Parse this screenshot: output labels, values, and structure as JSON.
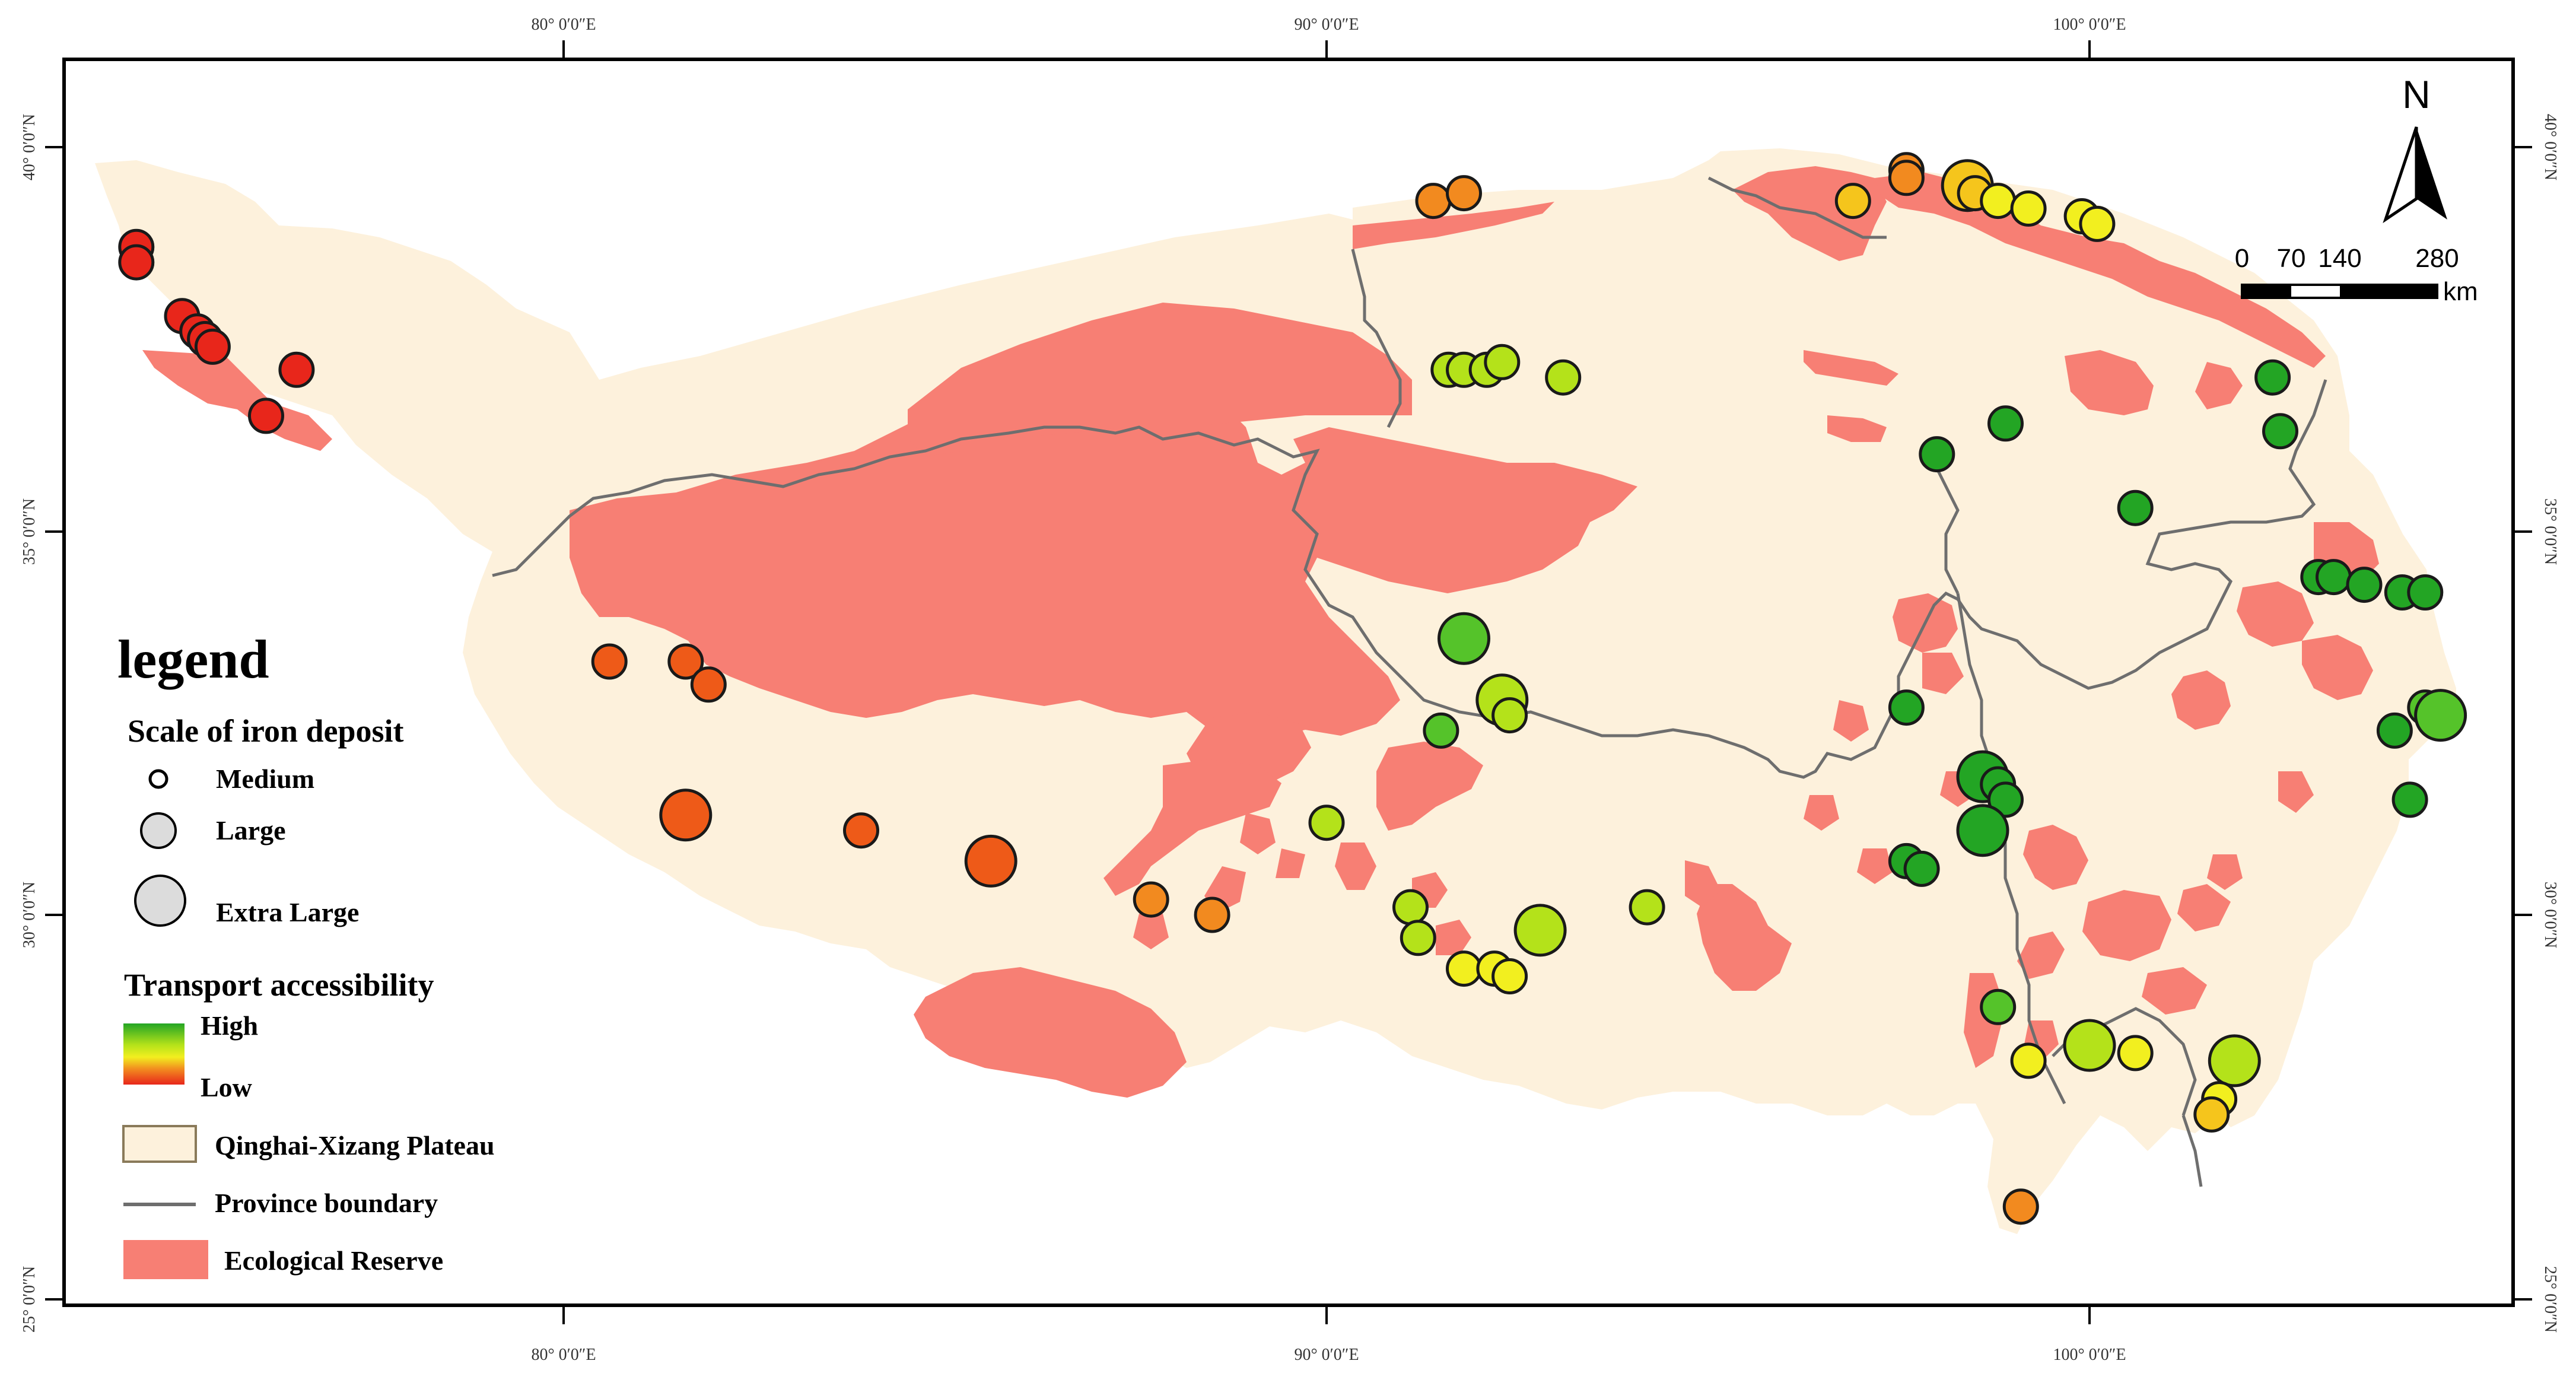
{
  "graticule": {
    "lon_labels": [
      "80° 0′0″E",
      "90° 0′0″E",
      "100° 0′0″E"
    ],
    "lat_labels": [
      "40° 0′0″N",
      "35° 0′0″N",
      "30° 0′0″N",
      "25° 0′0″N"
    ]
  },
  "north_arrow": {
    "label": "N",
    "icon": "north-arrow-icon"
  },
  "scale_bar": {
    "ticks": [
      "0",
      "70",
      "140",
      "280"
    ],
    "unit": "km"
  },
  "legend": {
    "title": "legend",
    "scale_heading": "Scale of iron deposit",
    "scale_items": [
      "Medium",
      "Large",
      "Extra Large"
    ],
    "access_heading": "Transport accessibility",
    "access_high": "High",
    "access_low": "Low",
    "plateau_label": "Qinghai-Xizang Plateau",
    "boundary_label": "Province boundary",
    "reserve_label": "Ecological Reserve"
  },
  "colors": {
    "plateau": "#fdf1dc",
    "reserve": "#f77f74",
    "boundary": "#6e6e6e",
    "accessibility_ramp": [
      "#e8261b",
      "#ee5a18",
      "#f28a1f",
      "#f5c51c",
      "#f2ef1f",
      "#b4e21a",
      "#55c32a",
      "#23a524"
    ]
  },
  "deposits": [
    {
      "lon": 74.4,
      "lat": 38.7,
      "size": "large",
      "access": 0.02
    },
    {
      "lon": 74.4,
      "lat": 38.5,
      "size": "large",
      "access": 0.02
    },
    {
      "lon": 75.0,
      "lat": 37.8,
      "size": "large",
      "access": 0.02
    },
    {
      "lon": 75.2,
      "lat": 37.6,
      "size": "large",
      "access": 0.02
    },
    {
      "lon": 75.3,
      "lat": 37.5,
      "size": "large",
      "access": 0.02
    },
    {
      "lon": 75.4,
      "lat": 37.4,
      "size": "large",
      "access": 0.02
    },
    {
      "lon": 76.5,
      "lat": 37.1,
      "size": "large",
      "access": 0.05
    },
    {
      "lon": 76.1,
      "lat": 36.5,
      "size": "large",
      "access": 0.05
    },
    {
      "lon": 80.6,
      "lat": 33.3,
      "size": "large",
      "access": 0.12
    },
    {
      "lon": 81.6,
      "lat": 33.3,
      "size": "large",
      "access": 0.12
    },
    {
      "lon": 81.9,
      "lat": 33.0,
      "size": "large",
      "access": 0.12
    },
    {
      "lon": 81.6,
      "lat": 31.3,
      "size": "xlarge",
      "access": 0.1
    },
    {
      "lon": 83.9,
      "lat": 31.1,
      "size": "large",
      "access": 0.17
    },
    {
      "lon": 85.6,
      "lat": 30.7,
      "size": "xlarge",
      "access": 0.2
    },
    {
      "lon": 87.7,
      "lat": 30.2,
      "size": "large",
      "access": 0.3
    },
    {
      "lon": 88.5,
      "lat": 30.0,
      "size": "large",
      "access": 0.3
    },
    {
      "lon": 91.4,
      "lat": 39.3,
      "size": "large",
      "access": 0.28
    },
    {
      "lon": 91.8,
      "lat": 39.4,
      "size": "large",
      "access": 0.28
    },
    {
      "lon": 96.9,
      "lat": 39.3,
      "size": "large",
      "access": 0.38
    },
    {
      "lon": 97.6,
      "lat": 39.7,
      "size": "large",
      "access": 0.33
    },
    {
      "lon": 97.6,
      "lat": 39.6,
      "size": "large",
      "access": 0.33
    },
    {
      "lon": 98.4,
      "lat": 39.5,
      "size": "xlarge",
      "access": 0.45
    },
    {
      "lon": 98.5,
      "lat": 39.4,
      "size": "large",
      "access": 0.45
    },
    {
      "lon": 98.8,
      "lat": 39.3,
      "size": "large",
      "access": 0.5
    },
    {
      "lon": 99.2,
      "lat": 39.2,
      "size": "large",
      "access": 0.5
    },
    {
      "lon": 99.9,
      "lat": 39.1,
      "size": "large",
      "access": 0.58
    },
    {
      "lon": 100.1,
      "lat": 39.0,
      "size": "large",
      "access": 0.6
    },
    {
      "lon": 91.6,
      "lat": 37.1,
      "size": "large",
      "access": 0.72
    },
    {
      "lon": 91.8,
      "lat": 37.1,
      "size": "large",
      "access": 0.72
    },
    {
      "lon": 92.1,
      "lat": 37.1,
      "size": "large",
      "access": 0.72
    },
    {
      "lon": 92.3,
      "lat": 37.2,
      "size": "large",
      "access": 0.72
    },
    {
      "lon": 93.1,
      "lat": 37.0,
      "size": "large",
      "access": 0.78
    },
    {
      "lon": 91.8,
      "lat": 33.6,
      "size": "xlarge",
      "access": 0.8
    },
    {
      "lon": 92.3,
      "lat": 32.8,
      "size": "xlarge",
      "access": 0.75
    },
    {
      "lon": 92.4,
      "lat": 32.6,
      "size": "large",
      "access": 0.75
    },
    {
      "lon": 91.5,
      "lat": 32.4,
      "size": "large",
      "access": 0.85
    },
    {
      "lon": 90.0,
      "lat": 31.2,
      "size": "large",
      "access": 0.68
    },
    {
      "lon": 91.1,
      "lat": 30.1,
      "size": "large",
      "access": 0.65
    },
    {
      "lon": 91.2,
      "lat": 29.7,
      "size": "large",
      "access": 0.65
    },
    {
      "lon": 92.8,
      "lat": 29.8,
      "size": "xlarge",
      "access": 0.72
    },
    {
      "lon": 94.2,
      "lat": 30.1,
      "size": "large",
      "access": 0.75
    },
    {
      "lon": 91.8,
      "lat": 29.3,
      "size": "large",
      "access": 0.6
    },
    {
      "lon": 92.2,
      "lat": 29.3,
      "size": "large",
      "access": 0.6
    },
    {
      "lon": 92.4,
      "lat": 29.2,
      "size": "large",
      "access": 0.6
    },
    {
      "lon": 98.0,
      "lat": 36.0,
      "size": "large",
      "access": 0.95
    },
    {
      "lon": 98.9,
      "lat": 36.4,
      "size": "large",
      "access": 0.95
    },
    {
      "lon": 100.6,
      "lat": 35.3,
      "size": "large",
      "access": 0.95
    },
    {
      "lon": 102.4,
      "lat": 37.0,
      "size": "large",
      "access": 0.95
    },
    {
      "lon": 102.5,
      "lat": 36.3,
      "size": "large",
      "access": 0.95
    },
    {
      "lon": 103.0,
      "lat": 34.4,
      "size": "large",
      "access": 0.98
    },
    {
      "lon": 103.2,
      "lat": 34.4,
      "size": "large",
      "access": 0.98
    },
    {
      "lon": 103.6,
      "lat": 34.3,
      "size": "large",
      "access": 0.98
    },
    {
      "lon": 104.1,
      "lat": 34.2,
      "size": "large",
      "access": 0.98
    },
    {
      "lon": 104.4,
      "lat": 34.2,
      "size": "large",
      "access": 0.98
    },
    {
      "lon": 97.6,
      "lat": 32.7,
      "size": "large",
      "access": 0.95
    },
    {
      "lon": 98.6,
      "lat": 31.8,
      "size": "xlarge",
      "access": 0.98
    },
    {
      "lon": 98.8,
      "lat": 31.7,
      "size": "large",
      "access": 0.98
    },
    {
      "lon": 98.9,
      "lat": 31.5,
      "size": "large",
      "access": 0.98
    },
    {
      "lon": 98.6,
      "lat": 31.1,
      "size": "xlarge",
      "access": 0.98
    },
    {
      "lon": 97.6,
      "lat": 30.7,
      "size": "large",
      "access": 0.98
    },
    {
      "lon": 97.8,
      "lat": 30.6,
      "size": "large",
      "access": 0.98
    },
    {
      "lon": 98.8,
      "lat": 28.8,
      "size": "large",
      "access": 0.9
    },
    {
      "lon": 100.0,
      "lat": 28.3,
      "size": "xlarge",
      "access": 0.78
    },
    {
      "lon": 99.2,
      "lat": 28.1,
      "size": "large",
      "access": 0.6
    },
    {
      "lon": 100.6,
      "lat": 28.2,
      "size": "large",
      "access": 0.6
    },
    {
      "lon": 101.9,
      "lat": 28.1,
      "size": "xlarge",
      "access": 0.68
    },
    {
      "lon": 101.7,
      "lat": 27.6,
      "size": "large",
      "access": 0.5
    },
    {
      "lon": 101.6,
      "lat": 27.4,
      "size": "large",
      "access": 0.45
    },
    {
      "lon": 104.0,
      "lat": 32.4,
      "size": "large",
      "access": 0.95
    },
    {
      "lon": 104.4,
      "lat": 32.7,
      "size": "large",
      "access": 0.85
    },
    {
      "lon": 104.6,
      "lat": 32.6,
      "size": "xlarge",
      "access": 0.8
    },
    {
      "lon": 104.2,
      "lat": 31.5,
      "size": "large",
      "access": 0.95
    },
    {
      "lon": 99.1,
      "lat": 26.2,
      "size": "large",
      "access": 0.3
    }
  ]
}
